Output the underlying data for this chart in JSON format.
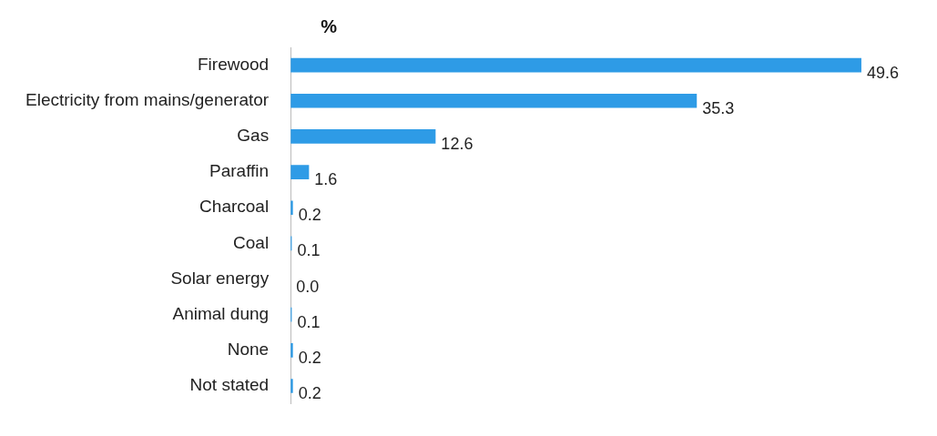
{
  "chart_data": {
    "type": "bar",
    "orientation": "horizontal",
    "title": "%",
    "categories": [
      "Firewood",
      "Electricity from mains/generator",
      "Gas",
      "Paraffin",
      "Charcoal",
      "Coal",
      "Solar energy",
      "Animal dung",
      "None",
      "Not stated"
    ],
    "values": [
      49.6,
      35.3,
      12.6,
      1.6,
      0.2,
      0.1,
      0.0,
      0.1,
      0.2,
      0.2
    ],
    "value_labels": [
      "49.6",
      "35.3",
      "12.6",
      "1.6",
      "0.2",
      "0.1",
      "0.0",
      "0.1",
      "0.2",
      "0.2"
    ],
    "color": "#2e9be6"
  }
}
